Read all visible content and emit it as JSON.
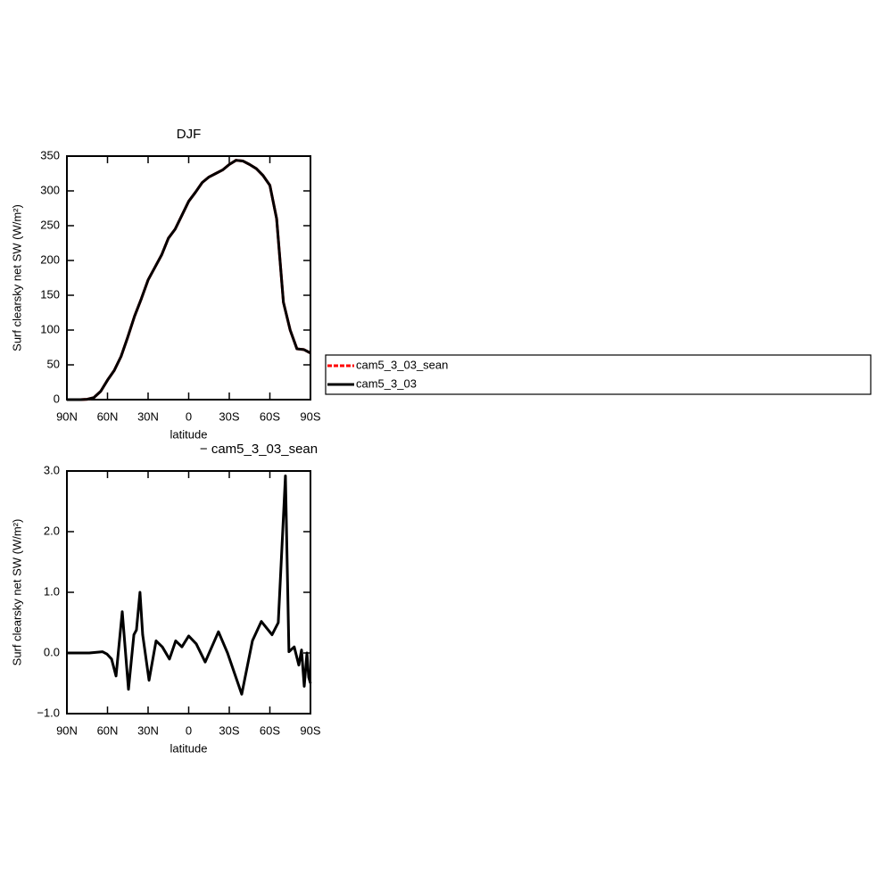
{
  "chart_data": [
    {
      "type": "line",
      "title": "DJF",
      "xlabel": "latitude",
      "ylabel": "Surf clearsky net SW (W/m²)",
      "x": [
        90,
        85,
        80,
        75,
        70,
        65,
        60,
        55,
        50,
        45,
        40,
        35,
        30,
        25,
        20,
        15,
        10,
        5,
        0,
        -5,
        -10,
        -15,
        -20,
        -25,
        -30,
        -35,
        -40,
        -45,
        -50,
        -55,
        -60,
        -65,
        -70,
        -75,
        -80,
        -85,
        -90
      ],
      "series": [
        {
          "name": "cam5_3_03_sean",
          "color": "#ff0000",
          "values": [
            0,
            0,
            0,
            0.5,
            3,
            12,
            28,
            42,
            62,
            90,
            120,
            145,
            172,
            190,
            208,
            232,
            245,
            265,
            285,
            298,
            312,
            320,
            325,
            330,
            338,
            344,
            343,
            338,
            332,
            322,
            308,
            260,
            140,
            100,
            73,
            72,
            67
          ]
        },
        {
          "name": "cam5_3_03",
          "color": "#000000",
          "values": [
            0,
            0,
            0,
            0.5,
            3,
            12,
            28,
            42,
            62,
            90,
            120,
            145,
            172,
            190,
            208,
            232,
            245,
            265,
            285,
            298,
            312,
            320,
            325,
            330,
            338,
            344,
            343,
            338,
            332,
            322,
            308,
            260,
            140,
            100,
            73,
            72,
            67
          ]
        }
      ],
      "xlim": [
        90,
        -90
      ],
      "xticks": [
        {
          "value": 90,
          "label": "90N"
        },
        {
          "value": 60,
          "label": "60N"
        },
        {
          "value": 30,
          "label": "30N"
        },
        0,
        {
          "value": -30,
          "label": "30S"
        },
        {
          "value": -60,
          "label": "60S"
        },
        {
          "value": -90,
          "label": "90S"
        }
      ],
      "ylim": [
        0,
        350
      ],
      "yticks": [
        0,
        50,
        100,
        150,
        200,
        250,
        300,
        350
      ]
    },
    {
      "type": "line",
      "title": "− cam5_3_03_sean",
      "xlabel": "latitude",
      "ylabel": "Surf clearsky net SW (W/m²)",
      "x": [
        90,
        73.5,
        63.6,
        60.3,
        57,
        53.7,
        49.1,
        44.5,
        40.5,
        38.6,
        36,
        34,
        29.3,
        24.1,
        19.5,
        14.2,
        9.6,
        5,
        0,
        -5.6,
        -12.2,
        -22,
        -28.7,
        -39.2,
        -47.1,
        -53.7,
        -61.6,
        -66.2,
        -71.5,
        -74.1,
        -78,
        -81.4,
        -83.4,
        -85.4,
        -87.4,
        -88.7,
        -90
      ],
      "series": [
        {
          "color": "#000000",
          "values": [
            0,
            0,
            0.02,
            -0.02,
            -0.1,
            -0.38,
            0.68,
            -0.6,
            0.3,
            0.38,
            1.0,
            0.3,
            -0.45,
            0.2,
            0.1,
            -0.1,
            0.2,
            0.1,
            0.28,
            0.15,
            -0.15,
            0.35,
            0,
            -0.68,
            0.2,
            0.52,
            0.3,
            0.5,
            2.92,
            0.02,
            0.1,
            -0.2,
            0.05,
            -0.55,
            0,
            -0.4,
            -0.5
          ]
        }
      ],
      "xlim": [
        90,
        -90
      ],
      "xticks": [
        {
          "value": 90,
          "label": "90N"
        },
        {
          "value": 60,
          "label": "60N"
        },
        {
          "value": 30,
          "label": "30N"
        },
        0,
        {
          "value": -30,
          "label": "30S"
        },
        {
          "value": -60,
          "label": "60S"
        },
        {
          "value": -90,
          "label": "90S"
        }
      ],
      "ylim": [
        -1,
        3
      ],
      "yticks": [
        {
          "value": -1,
          "label": "−1.0"
        },
        {
          "value": 0,
          "label": "0.0"
        },
        {
          "value": 1,
          "label": "1.0"
        },
        {
          "value": 2,
          "label": "2.0"
        },
        {
          "value": 3,
          "label": "3.0"
        }
      ]
    }
  ]
}
